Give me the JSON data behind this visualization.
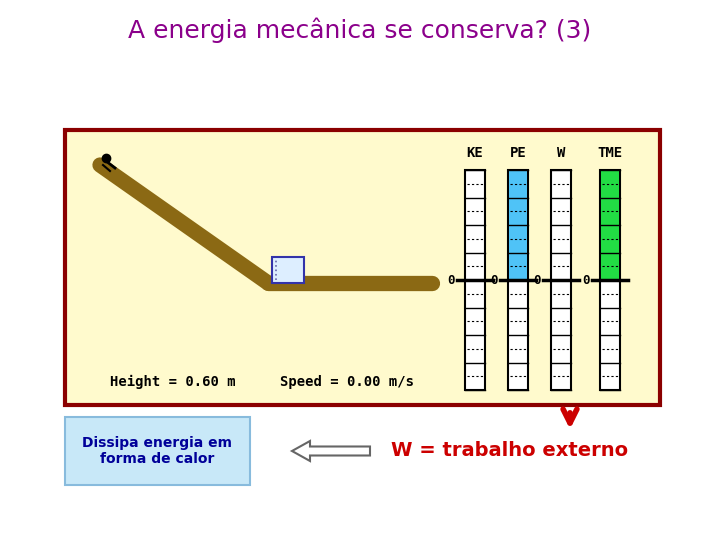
{
  "title": "A energia mecânica se conserva? (3)",
  "title_color": "#8B008B",
  "title_fontsize": 18,
  "bg_color": "#FFFFFF",
  "main_box_bg": "#FFFACD",
  "main_box_border": "#8B0000",
  "ramp_color": "#8B6914",
  "obj_color": "#DDEEFF",
  "obj_border": "#3333AA",
  "height_text": "Height = 0.60 m",
  "speed_text": "Speed = 0.00 m/s",
  "bar_labels": [
    "KE",
    "PE",
    "W",
    "TME"
  ],
  "bar_fill_colors": [
    "none",
    "#4FC3F7",
    "none",
    "#22DD44"
  ],
  "bar_fill_above": [
    0,
    1,
    0,
    1
  ],
  "zero_label": "0",
  "bottom_left_text": "Dissipa energia em\nforma de calor",
  "bottom_left_bg": "#C8E8F8",
  "bottom_left_border": "#88BBDD",
  "bottom_left_color": "#000099",
  "bottom_right_text": "W = trabalho externo",
  "bottom_right_color": "#CC0000",
  "red_arrow_color": "#CC0000",
  "outline_arrow_color": "#888888"
}
